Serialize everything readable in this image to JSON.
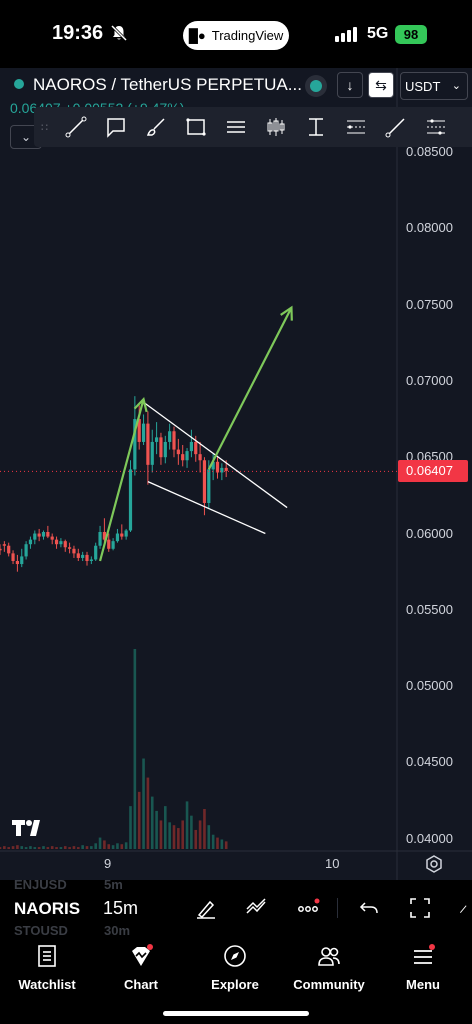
{
  "status_bar": {
    "time": "19:36",
    "app_pill": "TradingView",
    "network": "5G",
    "battery": "98"
  },
  "chart_header": {
    "symbol_title": "NAOROS / TetherUS PERPETUA...",
    "currency": "USDT",
    "price_change": "0.06407  +0.00552 (+9.47%)"
  },
  "price_axis": {
    "labels": [
      "0.08500",
      "0.08000",
      "0.07500",
      "0.07000",
      "0.06500",
      "0.06000",
      "0.05500",
      "0.05000",
      "0.04500",
      "0.04000"
    ],
    "last_price": "0.06407",
    "last_price_color": "#f23645"
  },
  "time_axis": {
    "labels": [
      "9",
      "10"
    ]
  },
  "drawing_tools": [
    "trend-line-tool",
    "callout-tool",
    "brush-tool",
    "rectangle-tool",
    "parallel-channel-tool",
    "candles-tool",
    "date-range-tool",
    "fib-tool",
    "ray-tool",
    "regression-tool"
  ],
  "bottom_strip": {
    "symbol": "NAORIS",
    "interval": "15m",
    "ghost_symbol_above": "ENJUSD",
    "ghost_interval_above": "5m",
    "ghost_symbol_below": "STOUSD",
    "ghost_interval_below": "30m"
  },
  "tabs": [
    {
      "label": "Watchlist",
      "icon": "watchlist-icon"
    },
    {
      "label": "Chart",
      "icon": "chart-icon"
    },
    {
      "label": "Explore",
      "icon": "compass-icon"
    },
    {
      "label": "Community",
      "icon": "people-icon"
    },
    {
      "label": "Menu",
      "icon": "menu-icon"
    }
  ],
  "colors": {
    "up": "#26a69a",
    "down": "#ef5350",
    "annotation": "#7ec85a",
    "background": "#131722"
  },
  "chart_data": {
    "type": "candlestick",
    "y_range": [
      0.0392,
      0.0905
    ],
    "x_ticks": [
      "9",
      "10"
    ],
    "last_price": 0.06407,
    "candles": [
      [
        0.059,
        0.0593,
        0.0589,
        0.0586
      ],
      [
        0.0593,
        0.0595,
        0.0592,
        0.0588
      ],
      [
        0.0592,
        0.0594,
        0.0587,
        0.0585
      ],
      [
        0.0587,
        0.0589,
        0.0582,
        0.058
      ],
      [
        0.0582,
        0.0586,
        0.058,
        0.0575
      ],
      [
        0.058,
        0.059,
        0.0585,
        0.0578
      ],
      [
        0.0585,
        0.0595,
        0.0593,
        0.0583
      ],
      [
        0.0593,
        0.0598,
        0.0596,
        0.059
      ],
      [
        0.0596,
        0.0602,
        0.06,
        0.0593
      ],
      [
        0.06,
        0.0603,
        0.0598,
        0.0595
      ],
      [
        0.0598,
        0.0602,
        0.0601,
        0.0596
      ],
      [
        0.0601,
        0.0605,
        0.0598,
        0.0597
      ],
      [
        0.0598,
        0.06,
        0.0596,
        0.0593
      ],
      [
        0.0596,
        0.0598,
        0.0593,
        0.059
      ],
      [
        0.0593,
        0.0597,
        0.0595,
        0.0591
      ],
      [
        0.0595,
        0.0596,
        0.0591,
        0.0588
      ],
      [
        0.0591,
        0.0594,
        0.059,
        0.0587
      ],
      [
        0.059,
        0.0592,
        0.0587,
        0.0584
      ],
      [
        0.0587,
        0.059,
        0.0584,
        0.0582
      ],
      [
        0.0584,
        0.0588,
        0.0586,
        0.0582
      ],
      [
        0.0586,
        0.0588,
        0.0582,
        0.0579
      ],
      [
        0.0582,
        0.0585,
        0.0583,
        0.058
      ],
      [
        0.0583,
        0.0594,
        0.0592,
        0.0582
      ],
      [
        0.0592,
        0.0605,
        0.0601,
        0.059
      ],
      [
        0.0601,
        0.061,
        0.0596,
        0.0594
      ],
      [
        0.0596,
        0.06,
        0.059,
        0.0588
      ],
      [
        0.059,
        0.0597,
        0.0595,
        0.0589
      ],
      [
        0.0595,
        0.0603,
        0.06,
        0.0594
      ],
      [
        0.06,
        0.0606,
        0.0598,
        0.0596
      ],
      [
        0.0598,
        0.0603,
        0.0602,
        0.0596
      ],
      [
        0.0602,
        0.0648,
        0.0642,
        0.0601
      ],
      [
        0.0642,
        0.069,
        0.0675,
        0.0638
      ],
      [
        0.0675,
        0.0684,
        0.066,
        0.0655
      ],
      [
        0.066,
        0.0678,
        0.0672,
        0.0658
      ],
      [
        0.0672,
        0.068,
        0.0645,
        0.0632
      ],
      [
        0.0645,
        0.0668,
        0.066,
        0.064
      ],
      [
        0.066,
        0.0673,
        0.0663,
        0.0652
      ],
      [
        0.0663,
        0.0666,
        0.065,
        0.0645
      ],
      [
        0.065,
        0.0664,
        0.066,
        0.0646
      ],
      [
        0.066,
        0.0672,
        0.0667,
        0.0655
      ],
      [
        0.0667,
        0.067,
        0.0655,
        0.065
      ],
      [
        0.0655,
        0.0662,
        0.0652,
        0.0645
      ],
      [
        0.0652,
        0.0658,
        0.0648,
        0.0644
      ],
      [
        0.0648,
        0.0656,
        0.0654,
        0.0643
      ],
      [
        0.0654,
        0.0668,
        0.066,
        0.065
      ],
      [
        0.066,
        0.0664,
        0.0652,
        0.0647
      ],
      [
        0.0652,
        0.066,
        0.0648,
        0.064
      ],
      [
        0.0648,
        0.065,
        0.062,
        0.0612
      ],
      [
        0.062,
        0.0648,
        0.0642,
        0.0616
      ],
      [
        0.0642,
        0.0652,
        0.0647,
        0.0635
      ],
      [
        0.0647,
        0.065,
        0.064,
        0.0636
      ],
      [
        0.064,
        0.0646,
        0.0643,
        0.0635
      ],
      [
        0.0643,
        0.0648,
        0.0641,
        0.0637
      ]
    ],
    "volume": [
      2,
      3,
      2,
      3,
      4,
      3,
      2,
      3,
      2,
      2,
      3,
      2,
      3,
      2,
      2,
      3,
      2,
      3,
      2,
      4,
      3,
      3,
      6,
      12,
      9,
      5,
      4,
      6,
      5,
      7,
      45,
      210,
      60,
      95,
      75,
      55,
      40,
      30,
      45,
      28,
      25,
      22,
      30,
      50,
      35,
      20,
      30,
      42,
      25,
      15,
      12,
      10,
      8
    ],
    "annotations": {
      "impulse_arrow_up": [
        [
          23,
          0.0582
        ],
        [
          33,
          0.0688
        ]
      ],
      "projection_arrow": [
        [
          48,
          0.0642
        ],
        [
          67,
          0.0748
        ]
      ],
      "channel_upper": [
        [
          33,
          0.0686
        ],
        [
          66,
          0.0617
        ]
      ],
      "channel_lower": [
        [
          34,
          0.0634
        ],
        [
          61,
          0.06
        ]
      ]
    }
  }
}
